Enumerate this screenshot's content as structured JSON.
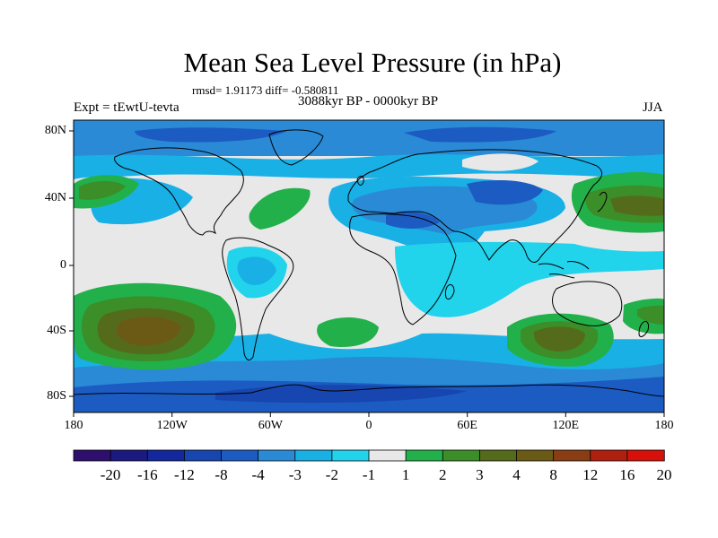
{
  "title": "Mean Sea Level Pressure (in hPa)",
  "stats": "rmsd= 1.91173 diff= -0.580811",
  "experiment": "Expt = tEwtU-tevta",
  "period": "3088kyr BP - 0000kyr BP",
  "season": "JJA",
  "lat_labels": [
    "80N",
    "40N",
    "0",
    "40S",
    "80S"
  ],
  "lon_labels": [
    "180",
    "120W",
    "60W",
    "0",
    "60E",
    "120E",
    "180"
  ],
  "colorbar": {
    "labels": [
      "-20",
      "-16",
      "-12",
      "-8",
      "-4",
      "-3",
      "-2",
      "-1",
      "1",
      "2",
      "3",
      "4",
      "8",
      "12",
      "16",
      "20"
    ],
    "colors": [
      "#2e0f6e",
      "#1a1a80",
      "#14289e",
      "#1746b0",
      "#1c5cc2",
      "#2a8ad6",
      "#19b0e6",
      "#22d3ec",
      "#e8e8e8",
      "#22b04a",
      "#3b8e28",
      "#556b1c",
      "#6b5a16",
      "#8a3c12",
      "#b0200e",
      "#d8100a"
    ]
  },
  "map_colors": {
    "gray": "#e8e8e8",
    "cyan": "#22d3ec",
    "lightblue": "#19b0e6",
    "medblue": "#2a8ad6",
    "blue": "#1c5cc2",
    "darkblue": "#1746b0",
    "deepblue": "#14289e",
    "green": "#22b04a",
    "darkgreen": "#3b8e28",
    "olive": "#556b1c",
    "brown": "#6b5a16"
  }
}
